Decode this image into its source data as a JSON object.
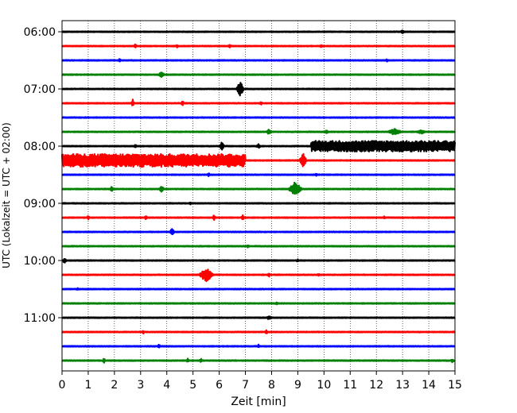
{
  "chart_data": {
    "type": "line",
    "title": "",
    "xlabel": "Zeit  [min]",
    "ylabel": "UTC (Lokalzeit = UTC + 02:00)",
    "xlim": [
      0,
      15
    ],
    "x_ticks": [
      0,
      1,
      2,
      3,
      4,
      5,
      6,
      7,
      8,
      9,
      10,
      11,
      12,
      13,
      14,
      15
    ],
    "x_tick_labels": [
      "0",
      "1",
      "2",
      "3",
      "4",
      "5",
      "6",
      "7",
      "8",
      "9",
      "10",
      "11",
      "12",
      "13",
      "14",
      "15"
    ],
    "y_tick_labels": [
      "06:00",
      "07:00",
      "08:00",
      "09:00",
      "10:00",
      "11:00"
    ],
    "y_tick_rows": [
      0,
      4,
      8,
      12,
      16,
      20
    ],
    "grid": "vertical dotted at each minute",
    "trace_interval_min": 15,
    "start_time": "06:00",
    "colors": [
      "#000000",
      "#ff0000",
      "#0000ff",
      "#008000"
    ],
    "series": [
      {
        "start": "06:00",
        "events": [
          {
            "x": 13.0,
            "amp": 0.25,
            "dur": 0.1
          }
        ]
      },
      {
        "start": "06:15",
        "events": [
          {
            "x": 2.8,
            "amp": 0.35,
            "dur": 0.06
          },
          {
            "x": 4.4,
            "amp": 0.25,
            "dur": 0.06
          },
          {
            "x": 6.4,
            "amp": 0.3,
            "dur": 0.06
          },
          {
            "x": 9.9,
            "amp": 0.25,
            "dur": 0.06
          }
        ]
      },
      {
        "start": "06:30",
        "events": [
          {
            "x": 2.2,
            "amp": 0.25,
            "dur": 0.06
          },
          {
            "x": 12.4,
            "amp": 0.2,
            "dur": 0.06
          }
        ]
      },
      {
        "start": "06:45",
        "events": [
          {
            "x": 3.8,
            "amp": 0.45,
            "dur": 0.12
          }
        ]
      },
      {
        "start": "07:00",
        "events": [
          {
            "x": 6.8,
            "amp": 1.1,
            "dur": 0.15
          }
        ]
      },
      {
        "start": "07:15",
        "events": [
          {
            "x": 2.7,
            "amp": 0.6,
            "dur": 0.06
          },
          {
            "x": 4.6,
            "amp": 0.45,
            "dur": 0.06
          },
          {
            "x": 7.6,
            "amp": 0.25,
            "dur": 0.06
          }
        ]
      },
      {
        "start": "07:30",
        "events": []
      },
      {
        "start": "07:45",
        "events": [
          {
            "x": 7.9,
            "amp": 0.4,
            "dur": 0.1
          },
          {
            "x": 10.1,
            "amp": 0.3,
            "dur": 0.08
          },
          {
            "x": 12.7,
            "amp": 0.45,
            "dur": 0.3
          },
          {
            "x": 13.7,
            "amp": 0.3,
            "dur": 0.2
          }
        ]
      },
      {
        "start": "08:00",
        "events": [
          {
            "x": 2.8,
            "amp": 0.25,
            "dur": 0.06
          },
          {
            "x": 6.1,
            "amp": 0.6,
            "dur": 0.1
          },
          {
            "x": 7.5,
            "amp": 0.3,
            "dur": 0.1
          },
          {
            "x": 9.7,
            "amp": 0.9,
            "dur": 0.2
          }
        ],
        "burst": {
          "from": 9.5,
          "to": 15.0,
          "amp": 0.75
        }
      },
      {
        "start": "08:15",
        "events": [
          {
            "x": 9.2,
            "amp": 1.0,
            "dur": 0.15
          }
        ],
        "burst": {
          "from": 0.0,
          "to": 7.0,
          "amp": 0.9
        }
      },
      {
        "start": "08:30",
        "events": [
          {
            "x": 5.6,
            "amp": 0.25,
            "dur": 0.06
          },
          {
            "x": 9.7,
            "amp": 0.2,
            "dur": 0.06
          }
        ]
      },
      {
        "start": "08:45",
        "events": [
          {
            "x": 1.9,
            "amp": 0.45,
            "dur": 0.08
          },
          {
            "x": 3.8,
            "amp": 0.5,
            "dur": 0.1
          },
          {
            "x": 8.9,
            "amp": 1.0,
            "dur": 0.28
          }
        ]
      },
      {
        "start": "09:00",
        "events": [
          {
            "x": 4.9,
            "amp": 0.2,
            "dur": 0.06
          }
        ]
      },
      {
        "start": "09:15",
        "events": [
          {
            "x": 1.0,
            "amp": 0.3,
            "dur": 0.06
          },
          {
            "x": 3.2,
            "amp": 0.3,
            "dur": 0.06
          },
          {
            "x": 5.8,
            "amp": 0.4,
            "dur": 0.06
          },
          {
            "x": 6.9,
            "amp": 0.4,
            "dur": 0.06
          },
          {
            "x": 12.3,
            "amp": 0.2,
            "dur": 0.06
          }
        ]
      },
      {
        "start": "09:30",
        "events": [
          {
            "x": 4.2,
            "amp": 0.55,
            "dur": 0.1
          }
        ]
      },
      {
        "start": "09:45",
        "events": [
          {
            "x": 7.1,
            "amp": 0.2,
            "dur": 0.06
          }
        ]
      },
      {
        "start": "10:00",
        "events": [
          {
            "x": 0.1,
            "amp": 0.45,
            "dur": 0.08
          },
          {
            "x": 9.0,
            "amp": 0.2,
            "dur": 0.06
          }
        ]
      },
      {
        "start": "10:15",
        "events": [
          {
            "x": 5.5,
            "amp": 1.0,
            "dur": 0.3
          },
          {
            "x": 7.9,
            "amp": 0.3,
            "dur": 0.06
          },
          {
            "x": 9.8,
            "amp": 0.2,
            "dur": 0.06
          }
        ]
      },
      {
        "start": "10:30",
        "events": [
          {
            "x": 0.6,
            "amp": 0.2,
            "dur": 0.06
          }
        ]
      },
      {
        "start": "10:45",
        "events": [
          {
            "x": 8.2,
            "amp": 0.2,
            "dur": 0.06
          }
        ]
      },
      {
        "start": "11:00",
        "events": [
          {
            "x": 7.9,
            "amp": 0.3,
            "dur": 0.1
          }
        ]
      },
      {
        "start": "11:15",
        "events": [
          {
            "x": 3.1,
            "amp": 0.25,
            "dur": 0.06
          },
          {
            "x": 7.8,
            "amp": 0.3,
            "dur": 0.06
          }
        ]
      },
      {
        "start": "11:30",
        "events": [
          {
            "x": 3.7,
            "amp": 0.3,
            "dur": 0.06
          },
          {
            "x": 7.5,
            "amp": 0.25,
            "dur": 0.06
          }
        ]
      },
      {
        "start": "11:45",
        "events": [
          {
            "x": 1.6,
            "amp": 0.4,
            "dur": 0.06
          },
          {
            "x": 4.8,
            "amp": 0.3,
            "dur": 0.06
          },
          {
            "x": 5.3,
            "amp": 0.35,
            "dur": 0.06
          },
          {
            "x": 14.9,
            "amp": 0.3,
            "dur": 0.06
          }
        ]
      }
    ]
  }
}
